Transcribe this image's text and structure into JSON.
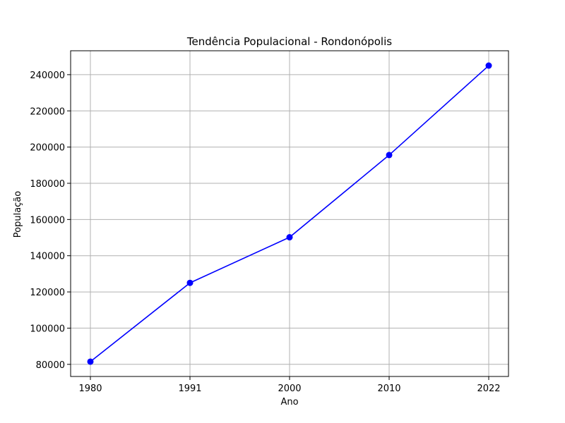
{
  "chart_data": {
    "type": "line",
    "title": "Tendência Populacional - Rondonópolis",
    "xlabel": "Ano",
    "ylabel": "População",
    "categories": [
      "1980",
      "1991",
      "2000",
      "2010",
      "2022"
    ],
    "series": [
      {
        "values": [
          81500,
          125000,
          150200,
          195600,
          245000
        ],
        "color": "#0000ff",
        "marker": "circle"
      }
    ],
    "yticks": [
      80000,
      100000,
      120000,
      140000,
      160000,
      180000,
      200000,
      220000,
      240000
    ],
    "ytick_labels": [
      "80000",
      "100000",
      "120000",
      "140000",
      "160000",
      "180000",
      "200000",
      "220000",
      "240000"
    ],
    "ylim": [
      73300,
      253200
    ],
    "grid": true
  }
}
